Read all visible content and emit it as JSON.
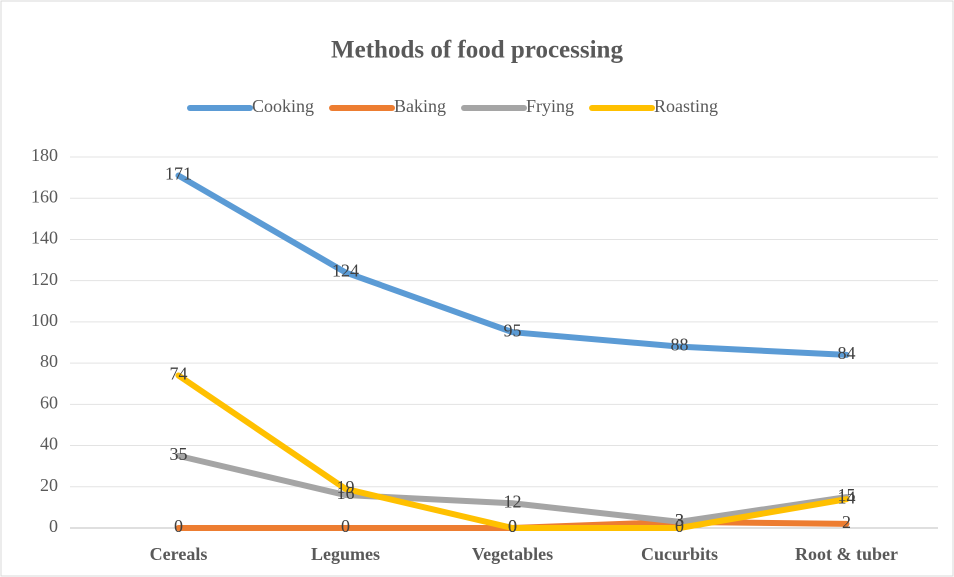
{
  "chart_data": {
    "type": "line",
    "title": "Methods of food processing",
    "categories": [
      "Cereals",
      "Legumes",
      "Vegetables",
      "Cucurbits",
      "Root & tuber"
    ],
    "series": [
      {
        "name": "Cooking",
        "color": "#5b9bd5",
        "values": [
          171,
          124,
          95,
          88,
          84
        ]
      },
      {
        "name": "Baking",
        "color": "#ed7d31",
        "values": [
          0,
          0,
          0,
          3,
          2
        ]
      },
      {
        "name": "Frying",
        "color": "#a5a5a5",
        "values": [
          35,
          16,
          12,
          3,
          15
        ]
      },
      {
        "name": "Roasting",
        "color": "#ffc000",
        "values": [
          74,
          19,
          0,
          0,
          14
        ]
      }
    ],
    "ylim": [
      0,
      180
    ],
    "yticks": [
      0,
      20,
      40,
      60,
      80,
      100,
      120,
      140,
      160,
      180
    ],
    "grid": true,
    "legend": "top"
  }
}
